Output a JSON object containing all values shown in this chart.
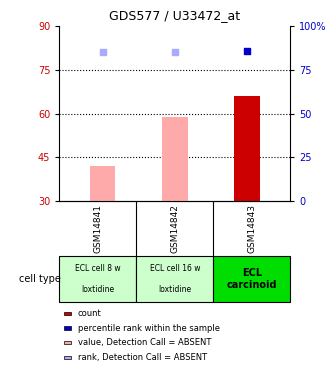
{
  "title": "GDS577 / U33472_at",
  "samples": [
    "GSM14841",
    "GSM14842",
    "GSM14843"
  ],
  "cell_types": [
    "ECL cell 8 w\n\nloxtidine",
    "ECL cell 16 w\n\nloxtidine",
    "ECL\ncarcinoid"
  ],
  "cell_type_colors": [
    "#ccffcc",
    "#ccffcc",
    "#00dd00"
  ],
  "bar_values": [
    42,
    59,
    66
  ],
  "bar_colors": [
    "#ffaaaa",
    "#ffaaaa",
    "#cc0000"
  ],
  "rank_values": [
    85,
    85,
    86
  ],
  "rank_colors": [
    "#aaaaff",
    "#aaaaff",
    "#0000cc"
  ],
  "ylim_left": [
    30,
    90
  ],
  "ylim_right": [
    0,
    100
  ],
  "yticks_left": [
    30,
    45,
    60,
    75,
    90
  ],
  "yticks_right": [
    0,
    25,
    50,
    75,
    100
  ],
  "ytick_labels_right": [
    "0",
    "25",
    "50",
    "75",
    "100%"
  ],
  "hlines": [
    45,
    60,
    75
  ],
  "bar_width": 0.35,
  "background_color": "#ffffff",
  "plot_bg_color": "#ffffff",
  "legend_items": [
    {
      "label": "count",
      "color": "#cc0000"
    },
    {
      "label": "percentile rank within the sample",
      "color": "#0000cc"
    },
    {
      "label": "value, Detection Call = ABSENT",
      "color": "#ffaaaa"
    },
    {
      "label": "rank, Detection Call = ABSENT",
      "color": "#aaaaff"
    }
  ],
  "xlabel_color": "#cc0000",
  "ylabel_right_color": "#0000cc",
  "cell_type_label": "cell type",
  "gsm_row_color": "#cccccc",
  "bar_bottom": 30
}
